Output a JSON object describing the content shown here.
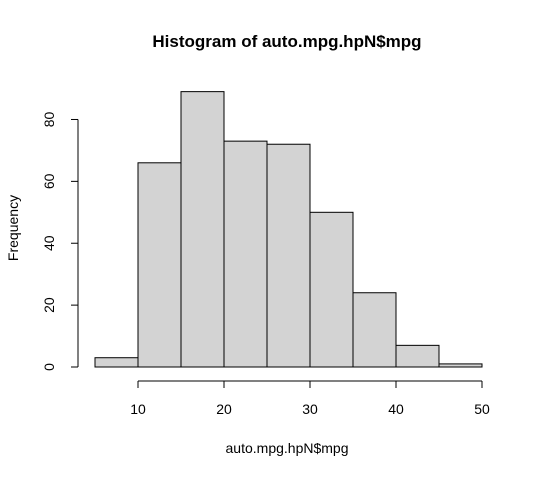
{
  "chart_data": {
    "type": "bar",
    "title": "Histogram of auto.mpg.hpN$mpg",
    "xlabel": "auto.mpg.hpN$mpg",
    "ylabel": "Frequency",
    "bins": [
      {
        "start": 5,
        "end": 10,
        "count": 3
      },
      {
        "start": 10,
        "end": 15,
        "count": 66
      },
      {
        "start": 15,
        "end": 20,
        "count": 89
      },
      {
        "start": 20,
        "end": 25,
        "count": 73
      },
      {
        "start": 25,
        "end": 30,
        "count": 72
      },
      {
        "start": 30,
        "end": 35,
        "count": 50
      },
      {
        "start": 35,
        "end": 40,
        "count": 24
      },
      {
        "start": 40,
        "end": 45,
        "count": 7
      },
      {
        "start": 45,
        "end": 50,
        "count": 1
      }
    ],
    "x_ticks": [
      10,
      20,
      30,
      40,
      50
    ],
    "y_ticks": [
      0,
      20,
      40,
      60,
      80
    ],
    "xlim": [
      5,
      50
    ],
    "ylim": [
      0,
      89
    ],
    "grid": false,
    "colors": {
      "bar_fill": "#d3d3d3",
      "bar_stroke": "#000000"
    }
  }
}
